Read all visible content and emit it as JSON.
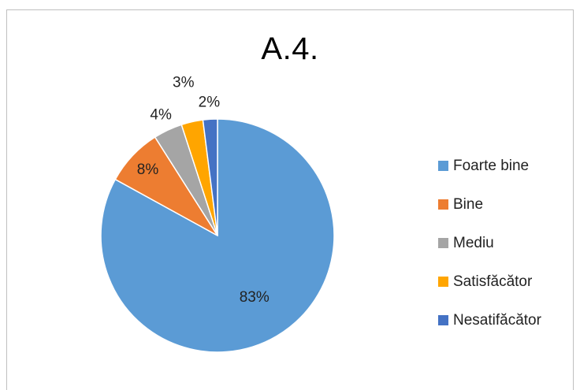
{
  "chart_data": {
    "type": "pie",
    "title": "A.4.",
    "categories": [
      "Foarte bine",
      "Bine",
      "Mediu",
      "Satisfăcător",
      "Nesatifăcător"
    ],
    "values": [
      83,
      8,
      4,
      3,
      2
    ],
    "value_labels": [
      "83%",
      "8%",
      "4%",
      "3%",
      "2%"
    ],
    "colors": [
      "#5B9BD5",
      "#ED7D31",
      "#A5A5A5",
      "#FFA500",
      "#4472C4"
    ],
    "start_angle": "12 o'clock",
    "direction": "clockwise",
    "legend_position": "right"
  }
}
